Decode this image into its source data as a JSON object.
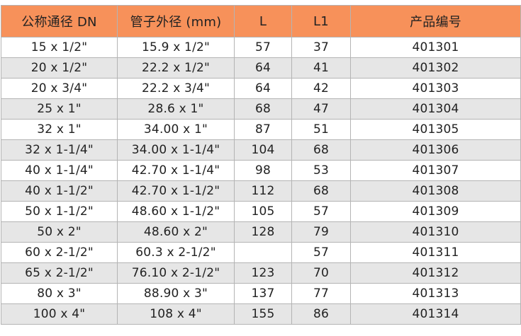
{
  "header_color": "#f7915a",
  "columns": [
    "公称通径 DN",
    "管子外径 (mm)",
    "L",
    "L1",
    "产品编号"
  ],
  "rows": [
    [
      "15 x 1/2\"",
      "15.9 x 1/2\"",
      "57",
      "37",
      "401301"
    ],
    [
      "20 x 1/2\"",
      "22.2 x 1/2\"",
      "64",
      "41",
      "401302"
    ],
    [
      "20 x 3/4\"",
      "22.2 x 3/4\"",
      "64",
      "42",
      "401303"
    ],
    [
      "25 x 1\"",
      "28.6 x 1\"",
      "68",
      "47",
      "401304"
    ],
    [
      "32 x 1\"",
      "34.00 x 1\"",
      "87",
      "51",
      "401305"
    ],
    [
      "32 x 1-1/4\"",
      "34.00 x 1-1/4\"",
      "104",
      "68",
      "401306"
    ],
    [
      "40 x 1-1/4\"",
      "42.70 x 1-1/4\"",
      "98",
      "53",
      "401307"
    ],
    [
      "40 x 1-1/2\"",
      "42.70 x 1-1/2\"",
      "112",
      "68",
      "401308"
    ],
    [
      "50 x 1-1/2\"",
      "48.60 x 1-1/2\"",
      "105",
      "57",
      "401309"
    ],
    [
      "50 x 2\"",
      "48.60 x 2\"",
      "128",
      "79",
      "401310"
    ],
    [
      "60 x 2-1/2\"",
      "60.3 x 2-1/2\"",
      "",
      "57",
      "401311"
    ],
    [
      "65 x 2-1/2\"",
      "76.10 x 2-1/2\"",
      "123",
      "70",
      "401312"
    ],
    [
      "80 x 3\"",
      "88.90 x 3\"",
      "137",
      "77",
      "401313"
    ],
    [
      "100 x 4\"",
      "108 x 4\"",
      "155",
      "86",
      "401314"
    ]
  ]
}
